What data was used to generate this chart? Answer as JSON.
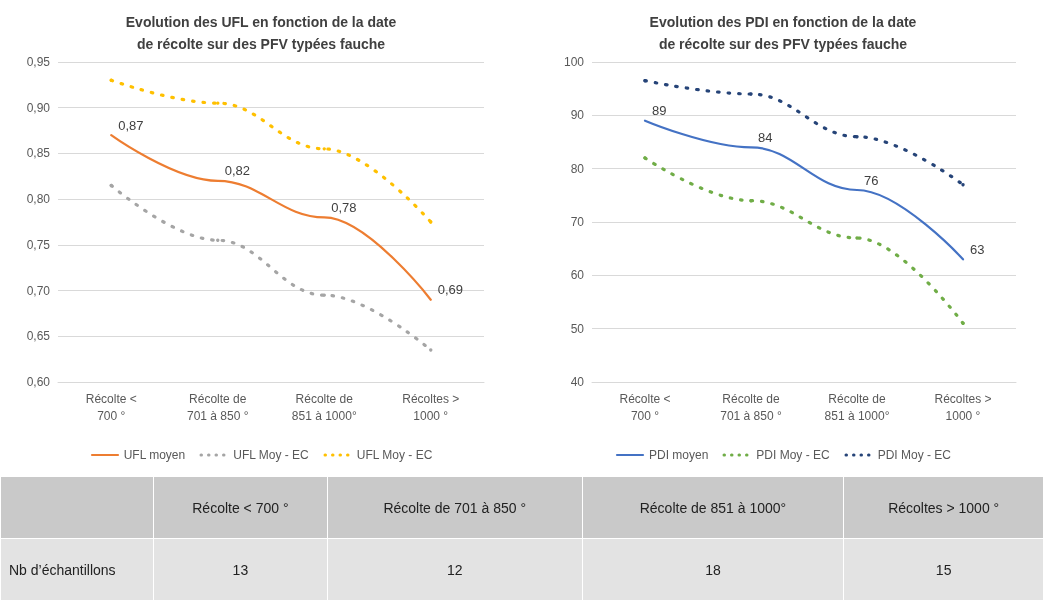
{
  "chart_data": [
    {
      "type": "line",
      "title": "Evolution des UFL en fonction de la date de récolte sur des PFV typées fauche",
      "categories": [
        "Récolte < 700 °",
        "Récolte de 701 à 850 °",
        "Récolte de 851 à 1000°",
        "Récoltes > 1000 °"
      ],
      "series": [
        {
          "name": "UFL moyen",
          "color": "#ed7d31",
          "values": [
            0.87,
            0.82,
            0.78,
            0.69
          ],
          "line_style": "solid",
          "value_labels": [
            "0,87",
            "0,82",
            "0,78",
            "0,69"
          ]
        },
        {
          "name": "UFL Moy - EC",
          "color": "#a5a5a5",
          "values": [
            0.815,
            0.755,
            0.695,
            0.635
          ],
          "line_style": "dotted"
        },
        {
          "name": "UFL Moy - EC",
          "color": "#ffc000",
          "values": [
            0.93,
            0.905,
            0.855,
            0.775
          ],
          "line_style": "dotted"
        }
      ],
      "ylim": [
        0.6,
        0.95
      ],
      "yticks": [
        {
          "value": 0.6,
          "label": "0,60"
        },
        {
          "value": 0.65,
          "label": "0,65"
        },
        {
          "value": 0.7,
          "label": "0,70"
        },
        {
          "value": 0.75,
          "label": "0,75"
        },
        {
          "value": 0.8,
          "label": "0,80"
        },
        {
          "value": 0.85,
          "label": "0,85"
        },
        {
          "value": 0.9,
          "label": "0,90"
        },
        {
          "value": 0.95,
          "label": "0,95"
        }
      ],
      "grid": "y",
      "legend": "bottom"
    },
    {
      "type": "line",
      "title": "Evolution des PDI en fonction de la date de récolte sur des PFV typées fauche",
      "categories": [
        "Récolte < 700 °",
        "Récolte de 701 à 850 °",
        "Récolte de 851 à 1000°",
        "Récoltes > 1000 °"
      ],
      "series": [
        {
          "name": "PDI moyen",
          "color": "#4472c4",
          "values": [
            89,
            84,
            76,
            63
          ],
          "line_style": "solid",
          "value_labels": [
            "89",
            "84",
            "76",
            "63"
          ]
        },
        {
          "name": "PDI Moy - EC",
          "color": "#70ad47",
          "values": [
            82,
            74,
            67,
            51
          ],
          "line_style": "dotted"
        },
        {
          "name": "PDI Moy - EC",
          "color": "#264478",
          "values": [
            96.5,
            94,
            86,
            77
          ],
          "line_style": "dotted"
        }
      ],
      "ylim": [
        40,
        100
      ],
      "yticks": [
        40,
        50,
        60,
        70,
        80,
        90,
        100
      ],
      "grid": "y",
      "legend": "bottom"
    },
    {
      "type": "other",
      "ylabel": "Nb d’échantillons",
      "categories": [
        "Récolte < 700 °",
        "Récolte de 701 à 850 °",
        "Récolte de 851 à 1000°",
        "Récoltes > 1000 °"
      ],
      "values": [
        13,
        12,
        18,
        15
      ],
      "data_labels": true
    }
  ]
}
